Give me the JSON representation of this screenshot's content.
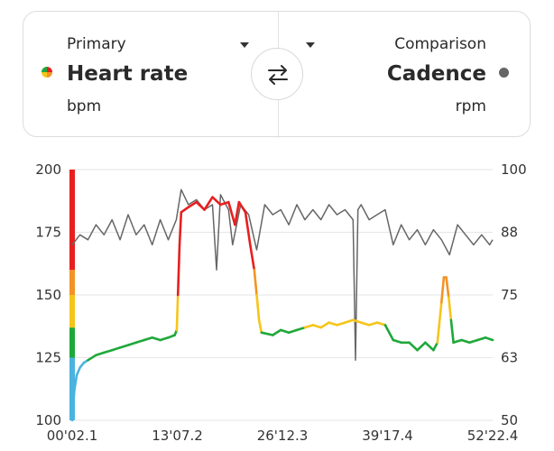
{
  "primary": {
    "label": "Primary",
    "value": "Heart rate",
    "unit": "bpm",
    "icon": "heart-rate-zone-dot-icon"
  },
  "comparison": {
    "label": "Comparison",
    "value": "Cadence",
    "unit": "rpm",
    "icon": "cadence-dot-icon",
    "color": "#666666"
  },
  "swap_icon": "swap-arrows-icon",
  "chart_data": {
    "type": "line",
    "title": "",
    "xlabel": "",
    "ylabel": "",
    "x_ticks": [
      "00'02.1",
      "13'07.2",
      "26'12.3",
      "39'17.4",
      "52'22.4"
    ],
    "y_left_ticks": [
      "200",
      "175",
      "150",
      "125",
      "100"
    ],
    "y_right_ticks": [
      "100",
      "88",
      "75",
      "63",
      "50"
    ],
    "ylim_left": [
      100,
      200
    ],
    "ylim_right": [
      50,
      100
    ],
    "xlim_minutes": [
      0.035,
      52.373
    ],
    "zone_colors": {
      "zone1": "#4bb3df",
      "zone2": "#1fa83a",
      "zone3": "#f6c51b",
      "zone4": "#f39325",
      "zone5": "#e81f1f"
    },
    "zone_bar_bounds": [
      100,
      125,
      137,
      150,
      160,
      200
    ],
    "series": [
      {
        "name": "Heart rate",
        "axis": "left",
        "points": [
          [
            0.035,
            100
          ],
          [
            0.3,
            112
          ],
          [
            0.6,
            118
          ],
          [
            1.0,
            121
          ],
          [
            1.5,
            123
          ],
          [
            2.0,
            124
          ],
          [
            3,
            126
          ],
          [
            4,
            127
          ],
          [
            5,
            128
          ],
          [
            6,
            129
          ],
          [
            7,
            130
          ],
          [
            8,
            131
          ],
          [
            9,
            132
          ],
          [
            10,
            133
          ],
          [
            11,
            132
          ],
          [
            12,
            133
          ],
          [
            12.8,
            134
          ],
          [
            13.05,
            136
          ],
          [
            13.2,
            150
          ],
          [
            13.4,
            170
          ],
          [
            13.6,
            183
          ],
          [
            14.5,
            185
          ],
          [
            15.5,
            187
          ],
          [
            16.5,
            184
          ],
          [
            17.5,
            189
          ],
          [
            18.5,
            186
          ],
          [
            19.5,
            187
          ],
          [
            20.3,
            178
          ],
          [
            20.8,
            187
          ],
          [
            21.6,
            183
          ],
          [
            22.2,
            170
          ],
          [
            22.7,
            160
          ],
          [
            23.0,
            150
          ],
          [
            23.3,
            140
          ],
          [
            23.6,
            135
          ],
          [
            25,
            134
          ],
          [
            26,
            136
          ],
          [
            27,
            135
          ],
          [
            28,
            136
          ],
          [
            29,
            137
          ],
          [
            30,
            138
          ],
          [
            31,
            137
          ],
          [
            32,
            139
          ],
          [
            33,
            138
          ],
          [
            34,
            139
          ],
          [
            35,
            140
          ],
          [
            36,
            139
          ],
          [
            37,
            138
          ],
          [
            38,
            139
          ],
          [
            39,
            138
          ],
          [
            40,
            132
          ],
          [
            41,
            131
          ],
          [
            42,
            131
          ],
          [
            43,
            128
          ],
          [
            44,
            131
          ],
          [
            45,
            128
          ],
          [
            45.5,
            131
          ],
          [
            46.0,
            147
          ],
          [
            46.3,
            157
          ],
          [
            46.6,
            157
          ],
          [
            46.9,
            149
          ],
          [
            47.2,
            140
          ],
          [
            47.5,
            131
          ],
          [
            48.5,
            132
          ],
          [
            49.5,
            131
          ],
          [
            50.5,
            132
          ],
          [
            51.5,
            133
          ],
          [
            52.373,
            132
          ]
        ]
      },
      {
        "name": "Cadence",
        "axis": "right",
        "points": [
          [
            0.035,
            85
          ],
          [
            1,
            87
          ],
          [
            2,
            86
          ],
          [
            3,
            89
          ],
          [
            4,
            87
          ],
          [
            5,
            90
          ],
          [
            6,
            86
          ],
          [
            7,
            91
          ],
          [
            8,
            87
          ],
          [
            9,
            89
          ],
          [
            10,
            85
          ],
          [
            11,
            90
          ],
          [
            12,
            86
          ],
          [
            13,
            90
          ],
          [
            13.6,
            96
          ],
          [
            14.5,
            93
          ],
          [
            15.5,
            94
          ],
          [
            16.5,
            92
          ],
          [
            17.5,
            93
          ],
          [
            18,
            80
          ],
          [
            18.5,
            95
          ],
          [
            19.5,
            92
          ],
          [
            20,
            85
          ],
          [
            21,
            93
          ],
          [
            22,
            91
          ],
          [
            23,
            84
          ],
          [
            24,
            93
          ],
          [
            25,
            91
          ],
          [
            26,
            92
          ],
          [
            27,
            89
          ],
          [
            28,
            93
          ],
          [
            29,
            90
          ],
          [
            30,
            92
          ],
          [
            31,
            90
          ],
          [
            32,
            93
          ],
          [
            33,
            91
          ],
          [
            34,
            92
          ],
          [
            35,
            90
          ],
          [
            35.3,
            62
          ],
          [
            35.6,
            92
          ],
          [
            36,
            93
          ],
          [
            37,
            90
          ],
          [
            38,
            91
          ],
          [
            39,
            92
          ],
          [
            40,
            85
          ],
          [
            41,
            89
          ],
          [
            42,
            86
          ],
          [
            43,
            88
          ],
          [
            44,
            85
          ],
          [
            45,
            88
          ],
          [
            46,
            86
          ],
          [
            47,
            83
          ],
          [
            48,
            89
          ],
          [
            49,
            87
          ],
          [
            50,
            85
          ],
          [
            51,
            87
          ],
          [
            52,
            85
          ],
          [
            52.373,
            86
          ]
        ]
      }
    ],
    "grid": true,
    "legend": "none"
  }
}
